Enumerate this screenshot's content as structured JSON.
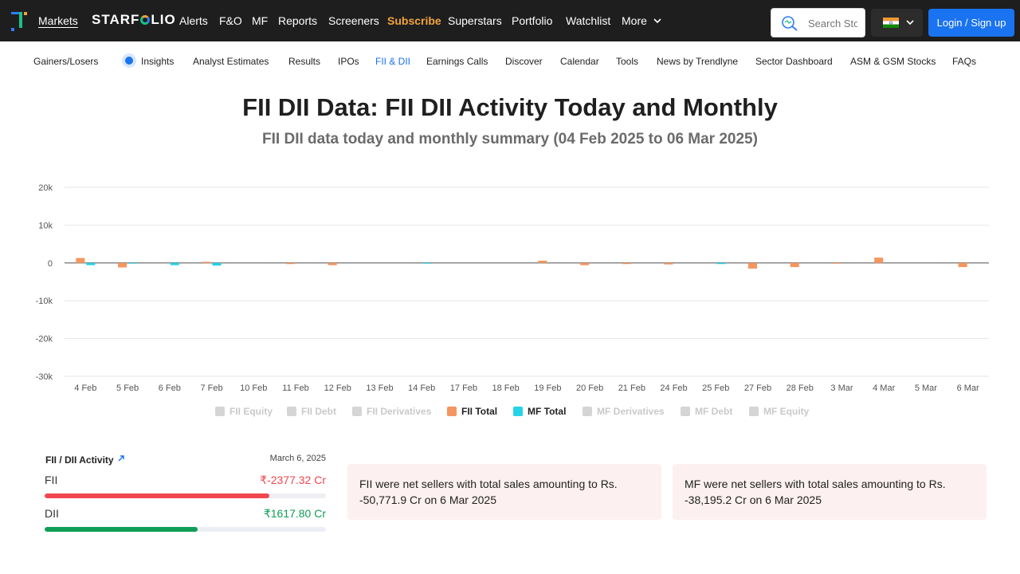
{
  "topnav": {
    "items": [
      "Markets",
      "Alerts",
      "F&O",
      "MF",
      "Reports",
      "Screeners",
      "Subscribe",
      "Superstars",
      "Portfolio",
      "Watchlist",
      "More"
    ],
    "brand": {
      "pre": "STARF",
      "post": "LIO"
    },
    "search_placeholder": "Search Stocks",
    "login_label": "Login / Sign up"
  },
  "subnav": {
    "items": [
      "Gainers/Losers",
      "Insights",
      "Analyst Estimates",
      "Results",
      "IPOs",
      "FII & DII",
      "Earnings Calls",
      "Discover",
      "Calendar",
      "Tools",
      "News by Trendlyne",
      "Sector Dashboard",
      "ASM & GSM Stocks",
      "FAQs"
    ],
    "active": "FII & DII"
  },
  "page": {
    "title": "FII DII Data: FII DII Activity Today and Monthly",
    "subtitle": "FII DII data today and monthly summary (04 Feb 2025 to 06 Mar 2025)"
  },
  "chart_data": {
    "type": "bar",
    "title": "",
    "xlabel": "",
    "ylabel": "",
    "ylim": [
      -30000,
      20000
    ],
    "yticks": [
      20000,
      10000,
      0,
      -10000,
      -20000,
      -30000
    ],
    "ytick_labels": [
      "20k",
      "10k",
      "0",
      "-10k",
      "-20k",
      "-30k"
    ],
    "categories": [
      "4 Feb",
      "5 Feb",
      "6 Feb",
      "7 Feb",
      "10 Feb",
      "11 Feb",
      "12 Feb",
      "13 Feb",
      "14 Feb",
      "17 Feb",
      "18 Feb",
      "19 Feb",
      "20 Feb",
      "21 Feb",
      "24 Feb",
      "25 Feb",
      "27 Feb",
      "28 Feb",
      "3 Mar",
      "4 Mar",
      "5 Mar",
      "6 Mar"
    ],
    "series": [
      {
        "name": "FII Total",
        "color": "#f5965f",
        "values": [
          1300,
          -1200,
          0,
          300,
          0,
          -300,
          -600,
          0,
          0,
          0,
          0,
          600,
          -600,
          -300,
          -400,
          0,
          -1500,
          -1100,
          -200,
          1400,
          0,
          -1100
        ]
      },
      {
        "name": "MF Total",
        "color": "#24d3e8",
        "values": [
          -600,
          -200,
          -600,
          -700,
          0,
          0,
          0,
          0,
          -200,
          0,
          0,
          0,
          0,
          0,
          0,
          -300,
          0,
          0,
          0,
          0,
          0,
          0
        ]
      }
    ],
    "legend": [
      {
        "name": "FII Equity",
        "enabled": false
      },
      {
        "name": "FII Debt",
        "enabled": false
      },
      {
        "name": "FII Derivatives",
        "enabled": false
      },
      {
        "name": "FII Total",
        "enabled": true,
        "color": "#f5965f"
      },
      {
        "name": "MF Total",
        "enabled": true,
        "color": "#24d3e8"
      },
      {
        "name": "MF Derivatives",
        "enabled": false
      },
      {
        "name": "MF Debt",
        "enabled": false
      },
      {
        "name": "MF Equity",
        "enabled": false
      }
    ],
    "grid": true,
    "legend_position": "bottom"
  },
  "activity": {
    "title": "FII / DII Activity",
    "date": "March 6, 2025",
    "fii": {
      "label": "FII",
      "value": "₹-2377.32 Cr",
      "fill_fraction": 0.8,
      "color": "#f1464f"
    },
    "dii": {
      "label": "DII",
      "value": "₹1617.80 Cr",
      "fill_fraction": 0.545,
      "color": "#0f9d58"
    }
  },
  "info": {
    "fii_text": "FII were net sellers with total sales amounting to Rs. -50,771.9 Cr on 6 Mar 2025",
    "mf_text": "MF were net sellers with total sales amounting to Rs. -38,195.2 Cr on 6 Mar 2025"
  },
  "colors": {
    "topbar": "#1e1e1e",
    "accent": "#1a73f0",
    "subscribe": "#f5a23d",
    "info_bg": "#fdf0f0"
  }
}
